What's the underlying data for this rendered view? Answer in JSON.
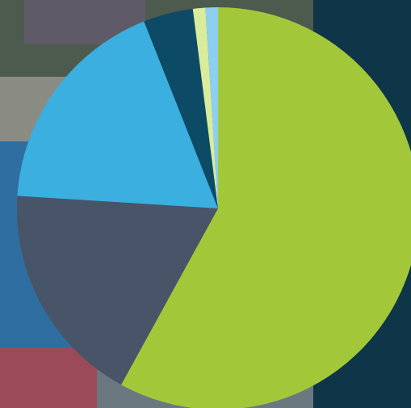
{
  "chart_data": {
    "type": "pie",
    "values": [
      58,
      18,
      18,
      4,
      1,
      1
    ],
    "colors": [
      "#a2c83a",
      "#485467",
      "#3aafe0",
      "#0d4a66",
      "#d9ec9c",
      "#8ccff0"
    ]
  }
}
